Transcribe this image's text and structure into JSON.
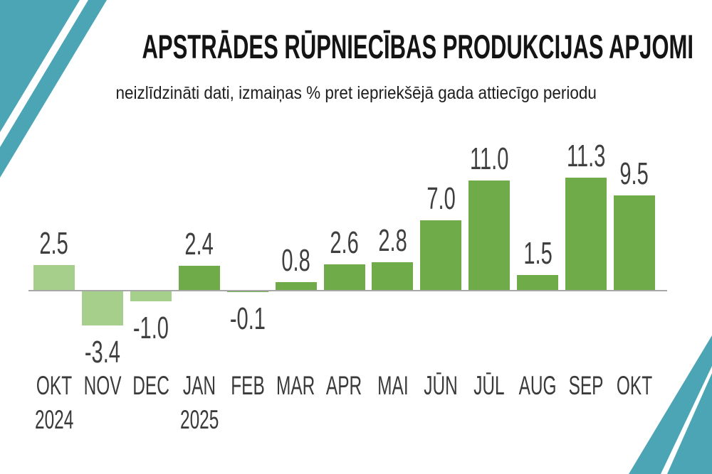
{
  "decorations": {
    "color": "#4BA5B5",
    "positions": [
      "top-left",
      "bottom-right"
    ]
  },
  "chart_data": {
    "type": "bar",
    "title": "APSTRĀDES RŪPNIECĪBAS PRODUKCIJAS APJOMI",
    "subtitle": "neizlīdzināti dati, izmaiņas % pret iepriekšējā gada attiecīgo periodu",
    "unit": "%",
    "categories": [
      "OKT",
      "NOV",
      "DEC",
      "JAN",
      "FEB",
      "MAR",
      "APR",
      "MAI",
      "JŪN",
      "JŪL",
      "AUG",
      "SEP",
      "OKT"
    ],
    "values": [
      2.5,
      -3.4,
      -1.0,
      2.4,
      -0.1,
      0.8,
      2.6,
      2.8,
      7.0,
      11.0,
      1.5,
      11.3,
      9.5
    ],
    "value_labels": [
      "2.5",
      "-3.4",
      "-1.0",
      "2.4",
      "-0.1",
      "0.8",
      "2.6",
      "2.8",
      "7.0",
      "11.0",
      "1.5",
      "11.3",
      "9.5"
    ],
    "year_labels": [
      {
        "category_index": 0,
        "text": "2024"
      },
      {
        "category_index": 3,
        "text": "2025"
      }
    ],
    "bar_groups": [
      "2024",
      "2024",
      "2024",
      "2025",
      "2025",
      "2025",
      "2025",
      "2025",
      "2025",
      "2025",
      "2025",
      "2025",
      "2025"
    ],
    "color_groups": {
      "2024": "#A6CF8B",
      "2025": "#70AB4A"
    },
    "axis": {
      "baseline_value": 0,
      "color": "#A8A8A8",
      "grid": false,
      "ylim": [
        -4,
        12
      ]
    },
    "label_color": "#3F3F3F"
  }
}
